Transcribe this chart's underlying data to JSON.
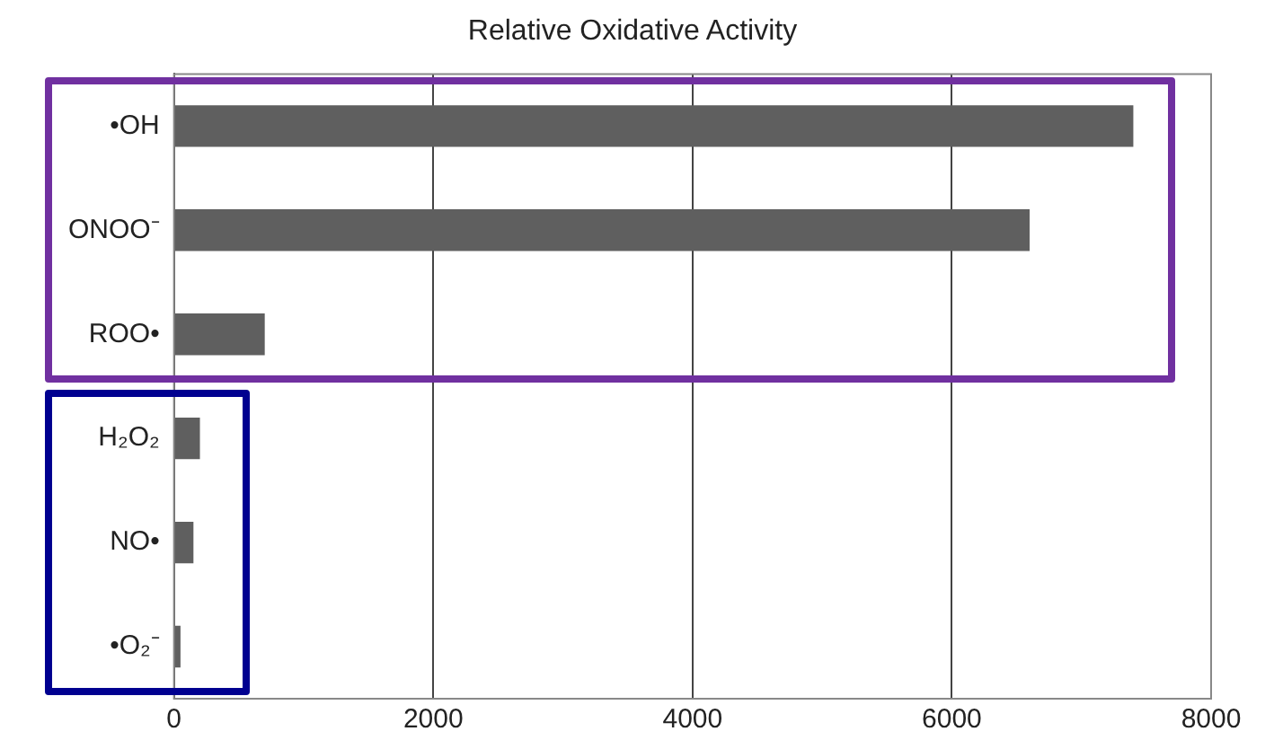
{
  "chart_data": {
    "type": "bar",
    "orientation": "horizontal",
    "title": "Relative Oxidative Activity",
    "categories": [
      "•OH",
      "ONOO⁻",
      "ROO•",
      "H₂O₂",
      "NO•",
      "•O₂⁻"
    ],
    "values": [
      7400,
      6600,
      700,
      200,
      150,
      50
    ],
    "color": "#5f5f5f",
    "xlim": [
      0,
      8000
    ],
    "xticks": [
      0,
      2000,
      4000,
      6000,
      8000
    ],
    "grid": "x",
    "legend": false
  }
}
